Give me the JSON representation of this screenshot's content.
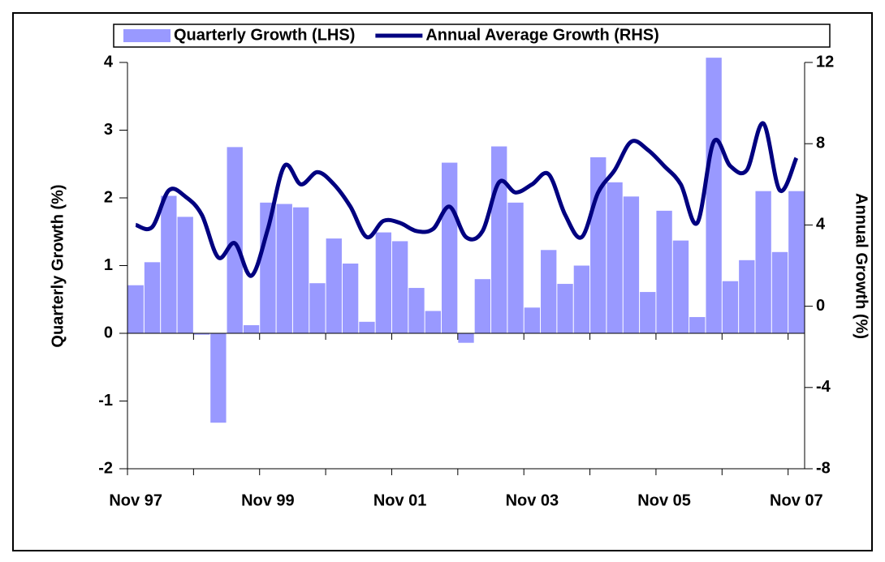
{
  "chart_data": {
    "type": "bar-line",
    "categories": [
      "Nov 97",
      null,
      null,
      null,
      null,
      null,
      null,
      null,
      "Nov 99",
      null,
      null,
      null,
      null,
      null,
      null,
      null,
      "Nov 01",
      null,
      null,
      null,
      null,
      null,
      null,
      null,
      "Nov 03",
      null,
      null,
      null,
      null,
      null,
      null,
      null,
      "Nov 05",
      null,
      null,
      null,
      null,
      null,
      null,
      null,
      "Nov 07"
    ],
    "series": [
      {
        "name": "Quarterly Growth (LHS)",
        "type": "bar",
        "color": "#9999ff",
        "axis": "y",
        "values": [
          0.71,
          1.05,
          2.03,
          1.72,
          -0.02,
          -1.32,
          2.75,
          0.12,
          1.93,
          1.91,
          1.86,
          0.74,
          1.4,
          1.03,
          0.17,
          1.49,
          1.36,
          0.67,
          0.33,
          2.52,
          -0.14,
          0.8,
          2.76,
          1.93,
          0.38,
          1.23,
          0.73,
          1.0,
          2.6,
          2.23,
          2.02,
          0.61,
          1.81,
          1.37,
          0.24,
          4.07,
          0.77,
          1.08,
          2.1,
          1.2,
          2.1
        ]
      },
      {
        "name": "Annual Average Growth (RHS)",
        "type": "line",
        "color": "#000080",
        "axis": "y2",
        "values": [
          4.0,
          3.9,
          5.7,
          5.4,
          4.5,
          2.4,
          3.1,
          1.5,
          3.8,
          6.9,
          6.0,
          6.6,
          6.0,
          4.9,
          3.4,
          4.2,
          4.1,
          3.7,
          3.8,
          4.9,
          3.4,
          3.7,
          6.1,
          5.6,
          6.0,
          6.5,
          4.5,
          3.4,
          5.6,
          6.7,
          8.1,
          7.7,
          6.9,
          6.0,
          4.1,
          8.1,
          6.9,
          6.7,
          9.0,
          5.7,
          7.3
        ]
      }
    ],
    "y_label": "Quarterly Growth (%)",
    "y2_label": "Annual Growth (%)",
    "ylim": [
      -2,
      4
    ],
    "yticks": [
      -2,
      -1,
      0,
      1,
      2,
      3,
      4
    ],
    "y2lim": [
      -8,
      12
    ],
    "y2ticks": [
      -8,
      -4,
      0,
      4,
      8,
      12
    ],
    "legend": "top"
  }
}
